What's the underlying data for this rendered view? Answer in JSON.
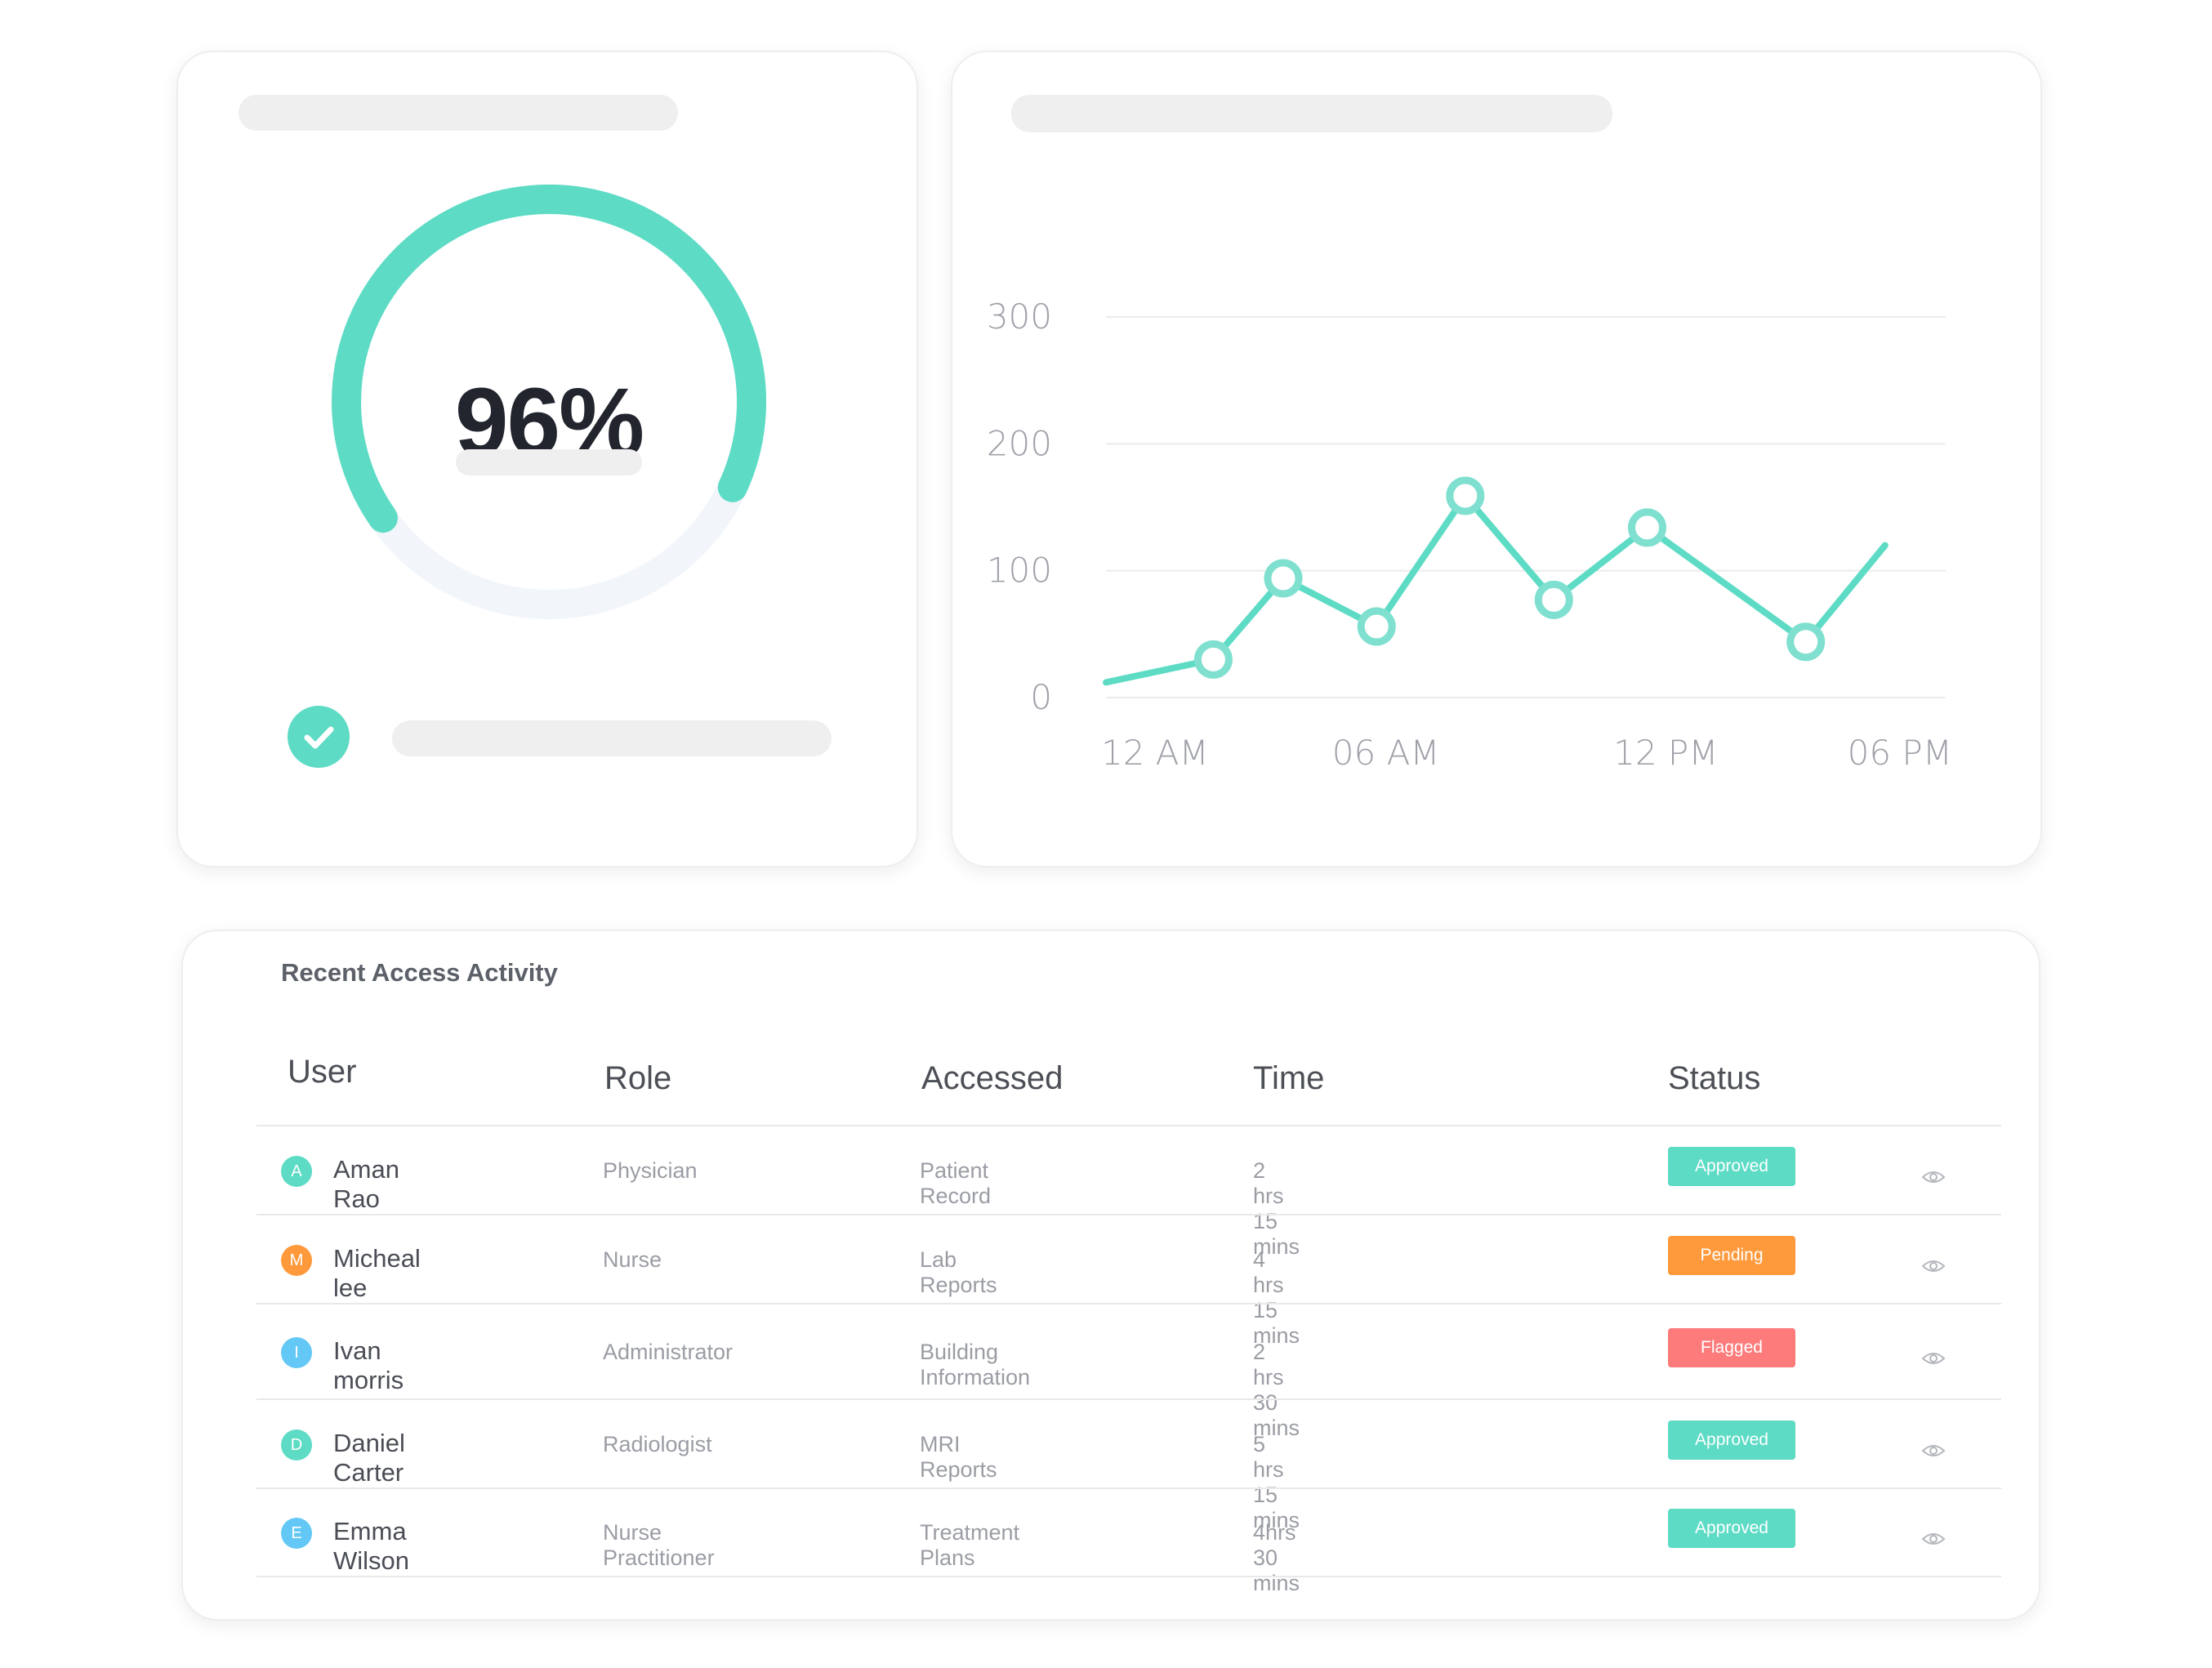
{
  "colors": {
    "accent": "#5ddbc5",
    "track": "#f2f6fb",
    "approved": "#5ddbc5",
    "pending": "#ff9a3c",
    "flagged": "#fd7b7b"
  },
  "gauge": {
    "value_label": "96%",
    "fraction": 0.96
  },
  "chart_data": {
    "type": "line",
    "x_ticks": [
      "12 AM",
      "06 AM",
      "12 PM",
      "06 PM"
    ],
    "y_ticks": [
      "0",
      "100",
      "200",
      "300"
    ],
    "ylim": [
      0,
      300
    ],
    "grid": true,
    "series": [
      {
        "values": [
          12,
          30,
          94,
          56,
          159,
          77,
          134,
          44,
          120
        ],
        "markers": [
          false,
          true,
          true,
          true,
          true,
          true,
          true,
          true,
          false
        ]
      }
    ],
    "x_positions_hours": [
      0,
      2.3,
      3.8,
      5.8,
      7.7,
      9.6,
      11.6,
      15.0,
      16.7
    ]
  },
  "table": {
    "title": "Recent Access Activity",
    "headers": {
      "user": "User",
      "role": "Role",
      "accessed": "Accessed",
      "time": "Time",
      "status": "Status"
    },
    "rows": [
      {
        "initial": "A",
        "avatar_color": "#5ddbc5",
        "user": "Aman Rao",
        "role": "Physician",
        "accessed": "Patient Record",
        "time": "2 hrs 15 mins",
        "status": "Approved",
        "status_color": "#5ddbc5",
        "action_icon": "eye-icon"
      },
      {
        "initial": "M",
        "avatar_color": "#ff9a3c",
        "user": "Micheal lee",
        "role": "Nurse",
        "accessed": "Lab Reports",
        "time": "4 hrs 15 mins",
        "status": "Pending",
        "status_color": "#ff9a3c",
        "action_icon": "eye-icon"
      },
      {
        "initial": "I",
        "avatar_color": "#63c8f5",
        "user": "Ivan morris",
        "role": "Administrator",
        "accessed": "Building Information",
        "time": "2 hrs 30 mins",
        "status": "Flagged",
        "status_color": "#fd7b7b",
        "action_icon": "eye-icon"
      },
      {
        "initial": "D",
        "avatar_color": "#5ddbc5",
        "user": "Daniel Carter",
        "role": "Radiologist",
        "accessed": "MRI Reports",
        "time": "5 hrs 15 mins",
        "status": "Approved",
        "status_color": "#5ddbc5",
        "action_icon": "eye-icon"
      },
      {
        "initial": "E",
        "avatar_color": "#63c8f5",
        "user": "Emma Wilson",
        "role": "Nurse Practitioner",
        "accessed": "Treatment Plans",
        "time": "4hrs 30 mins",
        "status": "Approved",
        "status_color": "#5ddbc5",
        "action_icon": "eye-icon"
      }
    ]
  }
}
